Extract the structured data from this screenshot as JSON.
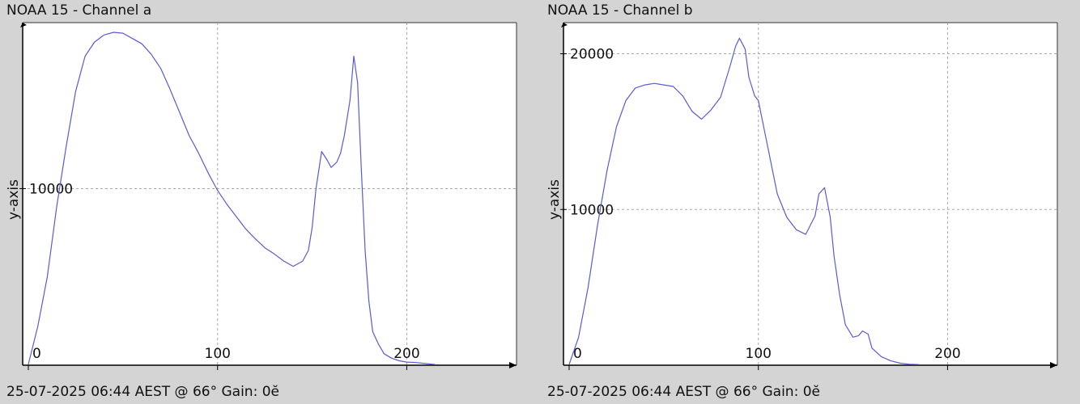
{
  "charts": [
    {
      "title": "NOAA 15 - Channel a",
      "footer": "25-07-2025 06:44 AEST @ 66° Gain: 0ĕ",
      "ylabel": "y-axis",
      "colors": {
        "line": "#5b5bd0",
        "grid": "#a8a8a8",
        "axis": "#000000",
        "plot_bg": "#ffffff"
      }
    },
    {
      "title": "NOAA 15 - Channel b",
      "footer": "25-07-2025 06:44 AEST @ 66° Gain: 0ĕ",
      "ylabel": "y-axis",
      "colors": {
        "line": "#5b5bd0",
        "grid": "#a8a8a8",
        "axis": "#000000",
        "plot_bg": "#ffffff"
      }
    }
  ],
  "chart_data": [
    {
      "type": "line",
      "title": "NOAA 15 - Channel a",
      "xlabel": "",
      "ylabel": "y-axis",
      "xlim": [
        -3,
        258
      ],
      "ylim": [
        0,
        19400
      ],
      "x_ticks": [
        0,
        100,
        200
      ],
      "y_ticks": [
        10000
      ],
      "grid": true,
      "series": [
        {
          "x": [
            0,
            5,
            10,
            15,
            20,
            25,
            30,
            35,
            40,
            45,
            50,
            55,
            60,
            65,
            70,
            75,
            80,
            85,
            90,
            95,
            100,
            105,
            110,
            115,
            120,
            125,
            130,
            135,
            140,
            145,
            148,
            150,
            152,
            155,
            158,
            160,
            163,
            165,
            167,
            170,
            172,
            174,
            176,
            178,
            180,
            182,
            185,
            188,
            192,
            196,
            200,
            205,
            210,
            215
          ],
          "y": [
            50,
            2200,
            5000,
            9000,
            12400,
            15500,
            17500,
            18300,
            18700,
            18850,
            18800,
            18500,
            18200,
            17600,
            16800,
            15600,
            14300,
            13000,
            12000,
            10900,
            9900,
            9100,
            8400,
            7700,
            7150,
            6650,
            6300,
            5900,
            5600,
            5900,
            6500,
            7800,
            10000,
            12100,
            11600,
            11200,
            11500,
            12000,
            13000,
            15000,
            17500,
            16000,
            11000,
            6500,
            3600,
            1900,
            1200,
            650,
            400,
            250,
            180,
            150,
            90,
            40
          ]
        }
      ]
    },
    {
      "type": "line",
      "title": "NOAA 15 - Channel b",
      "xlabel": "",
      "ylabel": "y-axis",
      "xlim": [
        -3,
        258
      ],
      "ylim": [
        0,
        22000
      ],
      "x_ticks": [
        0,
        100,
        200
      ],
      "y_ticks": [
        10000,
        20000
      ],
      "grid": true,
      "series": [
        {
          "x": [
            0,
            5,
            10,
            15,
            20,
            25,
            30,
            35,
            40,
            45,
            50,
            55,
            60,
            65,
            70,
            75,
            80,
            85,
            88,
            90,
            93,
            95,
            98,
            100,
            105,
            110,
            115,
            120,
            125,
            130,
            132,
            135,
            138,
            140,
            143,
            146,
            150,
            153,
            155,
            158,
            160,
            165,
            170,
            175,
            180,
            185
          ],
          "y": [
            50,
            1800,
            5000,
            9000,
            12500,
            15300,
            17000,
            17800,
            18000,
            18100,
            18000,
            17900,
            17300,
            16300,
            15800,
            16400,
            17200,
            19200,
            20500,
            21000,
            20300,
            18500,
            17300,
            17000,
            14000,
            11000,
            9500,
            8700,
            8400,
            9600,
            11000,
            11400,
            9500,
            7000,
            4500,
            2600,
            1800,
            1900,
            2200,
            2000,
            1100,
            550,
            280,
            130,
            60,
            40
          ]
        }
      ]
    }
  ]
}
